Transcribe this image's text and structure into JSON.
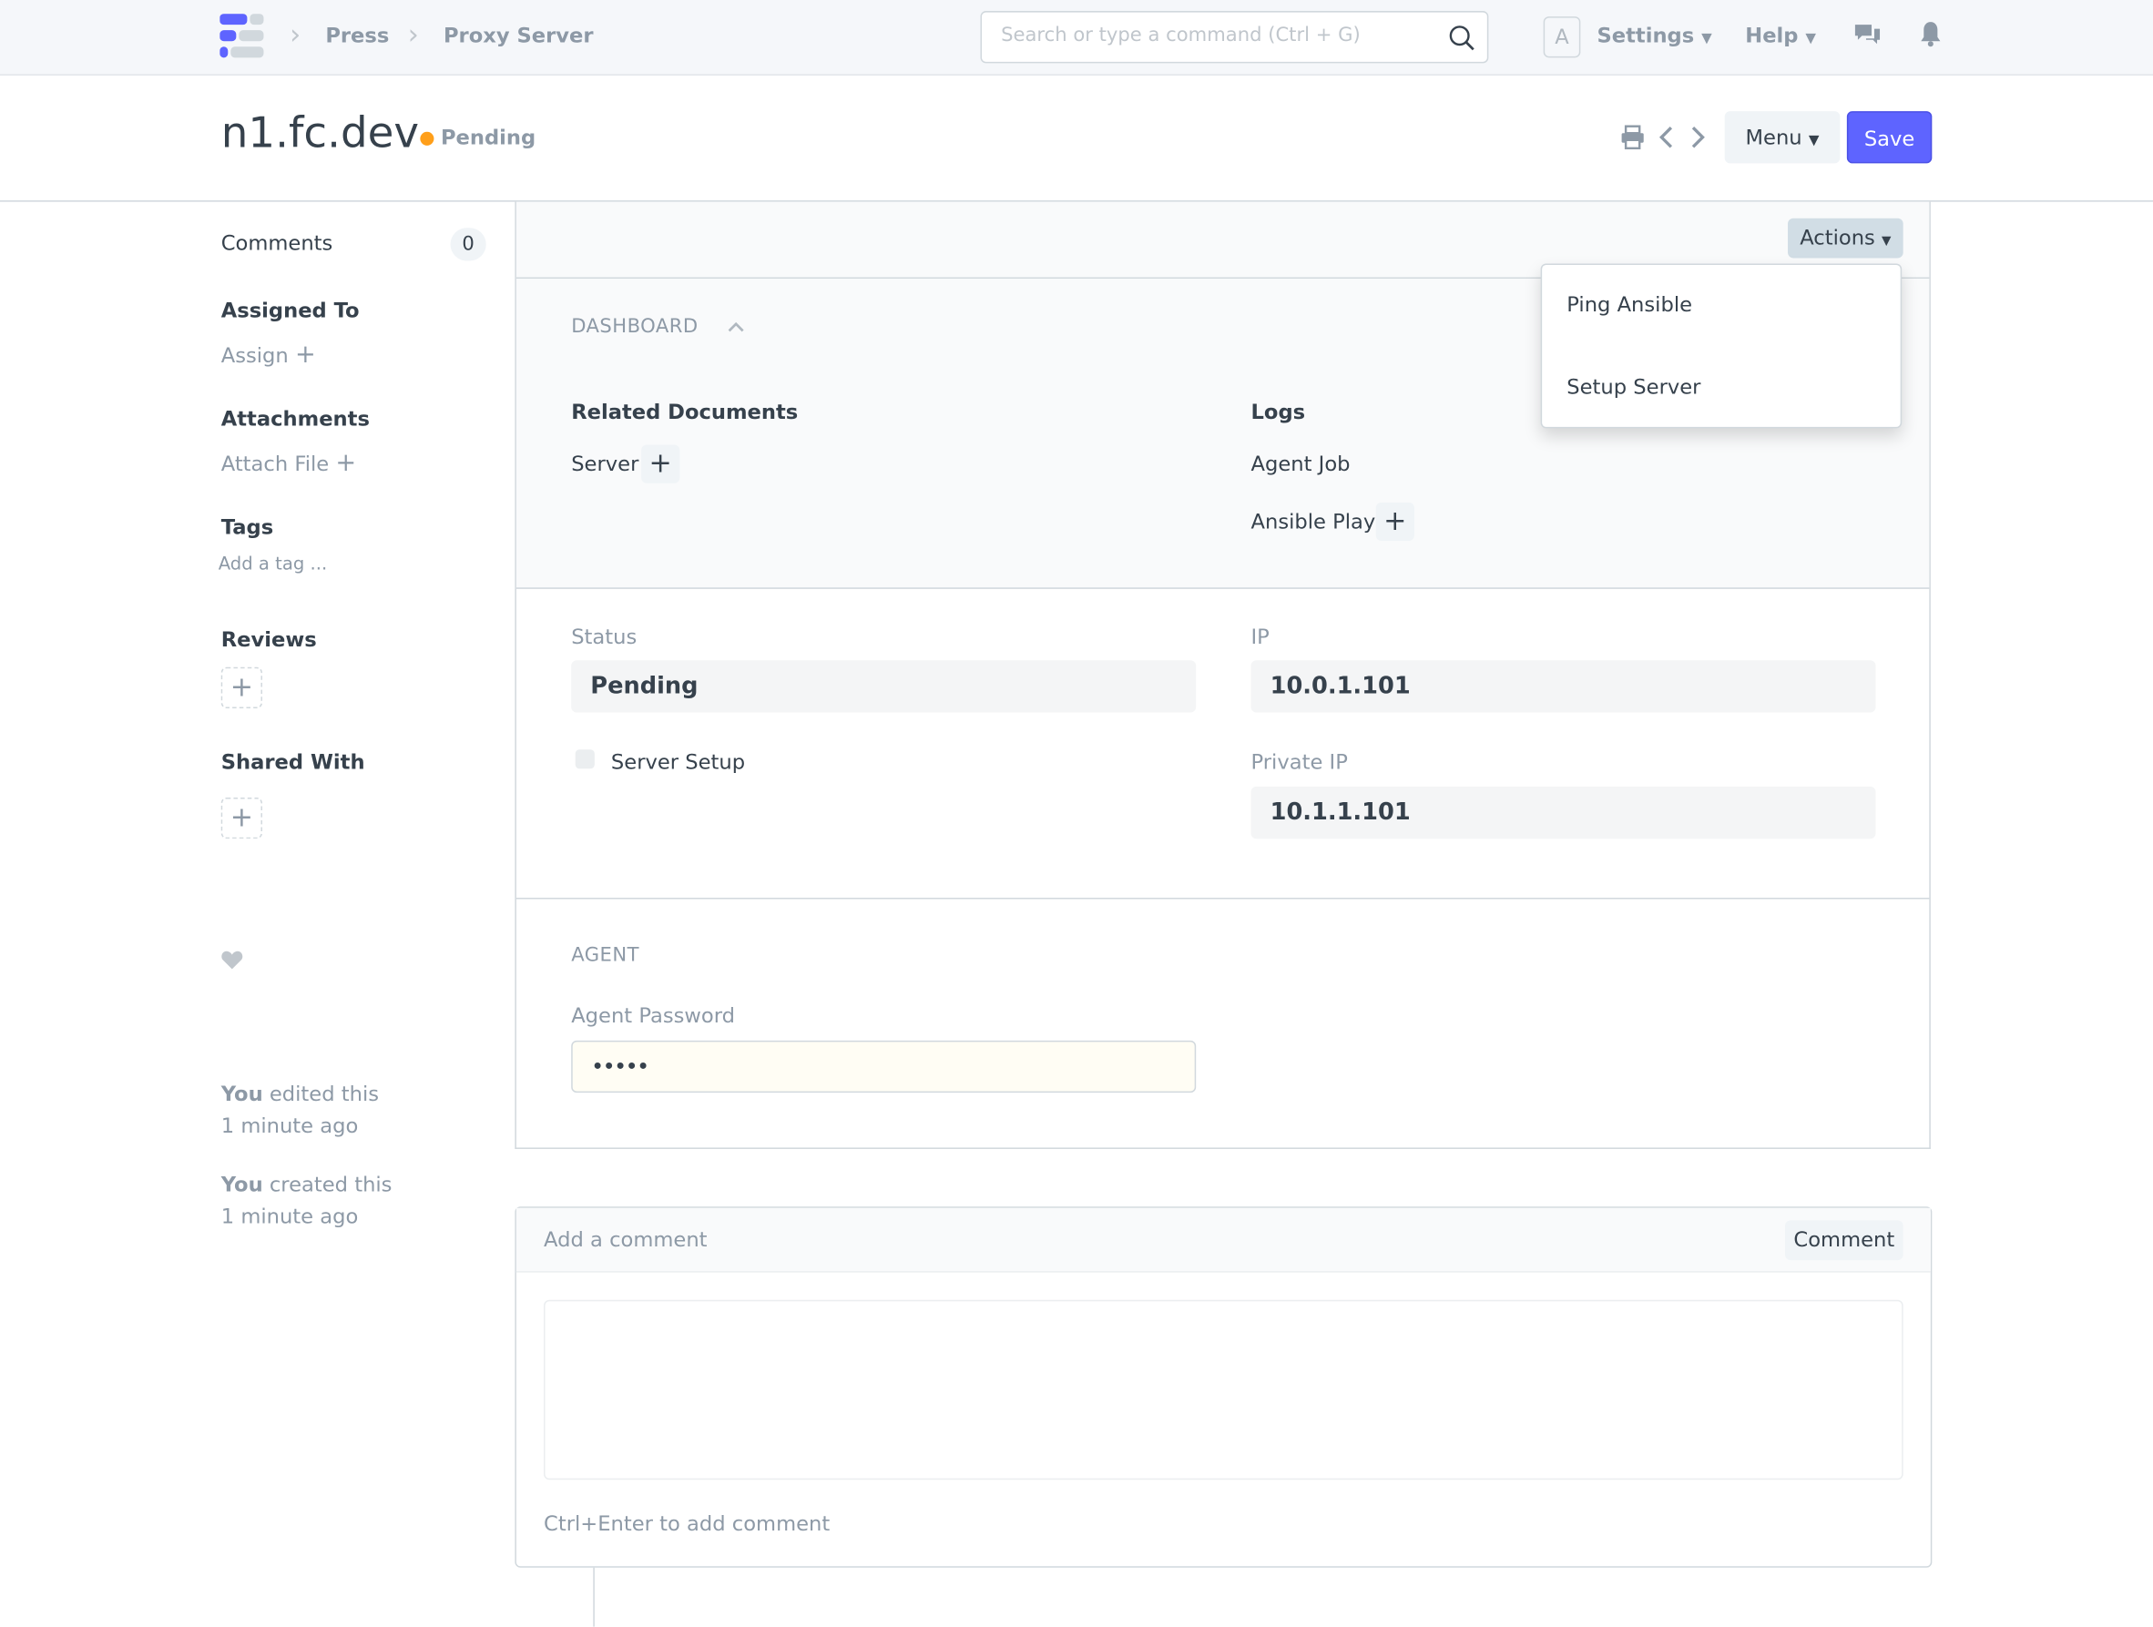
{
  "navbar": {
    "breadcrumbs": [
      "Press",
      "Proxy Server"
    ],
    "search_placeholder": "Search or type a command (Ctrl + G)",
    "avatar_letter": "A",
    "settings_label": "Settings",
    "help_label": "Help",
    "icons": [
      "app-logo",
      "search-icon",
      "chat-icon",
      "bell-icon"
    ]
  },
  "page_head": {
    "title": "n1.fc.dev",
    "status": "Pending",
    "status_color": "#ff9f1a",
    "menu_label": "Menu",
    "save_label": "Save",
    "accent": "#5e64ff"
  },
  "sidebar": {
    "comments_label": "Comments",
    "comments_count": "0",
    "assigned_to": "Assigned To",
    "assign": "Assign",
    "attachments": "Attachments",
    "attach_file": "Attach File",
    "tags": "Tags",
    "add_tag": "Add a tag ...",
    "reviews": "Reviews",
    "shared_with": "Shared With",
    "activity": [
      {
        "who": "You",
        "what": " edited this",
        "when": "1 minute ago"
      },
      {
        "who": "You",
        "what": " created this",
        "when": "1 minute ago"
      }
    ]
  },
  "form": {
    "actions_label": "Actions",
    "actions_menu": [
      "Ping Ansible",
      "Setup Server"
    ],
    "dashboard": {
      "heading": "DASHBOARD",
      "related_heading": "Related Documents",
      "related": [
        "Server"
      ],
      "logs_heading": "Logs",
      "logs": [
        "Agent Job",
        "Ansible Play"
      ]
    },
    "status_label": "Status",
    "status_value": "Pending",
    "server_setup_label": "Server Setup",
    "server_setup_checked": false,
    "ip_label": "IP",
    "ip_value": "10.0.1.101",
    "private_ip_label": "Private IP",
    "private_ip_value": "10.1.1.101",
    "agent_heading": "AGENT",
    "agent_password_label": "Agent Password",
    "agent_password_value": "•••••"
  },
  "comment": {
    "header": "Add a comment",
    "button": "Comment",
    "hint": "Ctrl+Enter to add comment"
  }
}
